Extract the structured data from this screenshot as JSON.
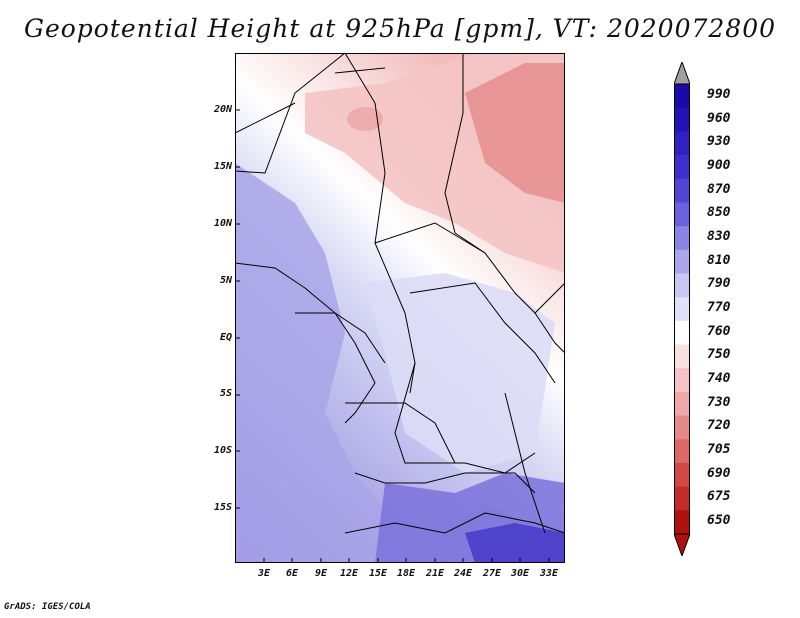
{
  "title": "Geopotential Height at 925hPa [gpm], VT: 2020072800",
  "footer": "GrADS: IGES/COLA",
  "lat_labels": [
    "20N",
    "15N",
    "10N",
    "5N",
    "EQ",
    "5S",
    "10S",
    "15S"
  ],
  "lon_labels": [
    "3E",
    "6E",
    "9E",
    "12E",
    "15E",
    "18E",
    "21E",
    "24E",
    "27E",
    "30E",
    "33E"
  ],
  "colorbar": {
    "labels": [
      "990",
      "960",
      "930",
      "900",
      "870",
      "850",
      "830",
      "810",
      "790",
      "770",
      "760",
      "750",
      "740",
      "730",
      "720",
      "705",
      "690",
      "675",
      "650"
    ],
    "colors": [
      "#1a0aa8",
      "#2312b8",
      "#3022c2",
      "#3c30cc",
      "#5046d6",
      "#6a62dc",
      "#8a84e4",
      "#aaa6ec",
      "#c8c6f2",
      "#e2e1f8",
      "#ffffff",
      "#fbe0e0",
      "#f6c4c4",
      "#eea8a8",
      "#e58888",
      "#dc6868",
      "#d24848",
      "#c42a2a",
      "#b01010"
    ]
  },
  "colors": {
    "cool_field": "#b3afe9",
    "warm_field": "#ea8d8d",
    "border": "#000000"
  }
}
